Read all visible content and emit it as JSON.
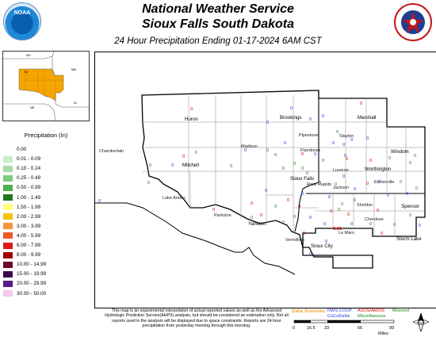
{
  "header": {
    "title_line1": "National Weather Service",
    "title_line2": "Sioux Falls South Dakota",
    "subtitle": "24 Hour Precipitation Ending 01-17-2024 6AM CST",
    "left_logo_text": "NOAA"
  },
  "inset": {
    "states": [
      "ND",
      "MN",
      "SD",
      "IA",
      "NE"
    ],
    "highlight_color": "#f6a500"
  },
  "legend": {
    "title": "Precipitation (In)",
    "items": [
      {
        "label": "0.00",
        "color": "#ffffff"
      },
      {
        "label": "0.01 - 0.09",
        "color": "#c8ecc8"
      },
      {
        "label": "0.10 - 0.24",
        "color": "#a6dca6"
      },
      {
        "label": "0.25 - 0.49",
        "color": "#7fcc7f"
      },
      {
        "label": "0.50 - 0.99",
        "color": "#4fb04f"
      },
      {
        "label": "1.00 - 1.49",
        "color": "#1e7a1e"
      },
      {
        "label": "1.50 - 1.99",
        "color": "#ffff80"
      },
      {
        "label": "2.00 - 2.99",
        "color": "#f6c300"
      },
      {
        "label": "3.00 - 3.99",
        "color": "#f5923a"
      },
      {
        "label": "4.00 - 5.99",
        "color": "#f05a28"
      },
      {
        "label": "6.00 - 7.99",
        "color": "#e01818"
      },
      {
        "label": "8.00 - 9.99",
        "color": "#a00000"
      },
      {
        "label": "10.00 - 14.99",
        "color": "#6a0a2a"
      },
      {
        "label": "15.00 - 19.99",
        "color": "#3a0a4a"
      },
      {
        "label": "20.00 - 29.99",
        "color": "#5a1a8a"
      },
      {
        "label": "30.00 - 50.00",
        "color": "#f3c8f0"
      }
    ]
  },
  "cities": [
    {
      "name": "Huron",
      "big": true
    },
    {
      "name": "Brookings",
      "big": true
    },
    {
      "name": "Marshall",
      "big": true
    },
    {
      "name": "Chamberlain",
      "big": false
    },
    {
      "name": "Mitchell",
      "big": true
    },
    {
      "name": "Madison",
      "big": false
    },
    {
      "name": "Pipestone",
      "big": false
    },
    {
      "name": "Slayton",
      "big": false
    },
    {
      "name": "Windom",
      "big": true
    },
    {
      "name": "Sioux Falls",
      "big": true
    },
    {
      "name": "Worthington",
      "big": true
    },
    {
      "name": "Luverne",
      "big": false
    },
    {
      "name": "Rock Rapids",
      "big": false
    },
    {
      "name": "Spencer",
      "big": true
    },
    {
      "name": "Lake Andes",
      "big": false
    },
    {
      "name": "Yankton",
      "big": true
    },
    {
      "name": "Le Mars",
      "big": false
    },
    {
      "name": "Cherokee",
      "big": false
    },
    {
      "name": "Storm Lake",
      "big": true
    },
    {
      "name": "Sioux City",
      "big": true
    },
    {
      "name": "Parkston",
      "big": false
    },
    {
      "name": "Flandreau",
      "big": false
    },
    {
      "name": "Jackson",
      "big": false
    },
    {
      "name": "Estherville",
      "big": false
    },
    {
      "name": "Sheldon",
      "big": false
    },
    {
      "name": "Vermillion",
      "big": false
    }
  ],
  "reports": [
    "0",
    "0",
    "0",
    "0",
    "0",
    "0",
    "0",
    "0",
    "0",
    "0",
    "0",
    "0",
    "0",
    "0",
    "0",
    "0",
    "0",
    "0",
    "0",
    "0",
    "0",
    "0",
    "0",
    "0",
    "0",
    "0",
    "0",
    "0",
    "0",
    "0",
    "0",
    "0",
    "0",
    "0",
    "0",
    "0",
    "0",
    "0",
    "0",
    "0",
    "0",
    "0",
    "0",
    "0",
    "0",
    "0",
    "0",
    "0",
    "0",
    "0",
    "0",
    "0",
    "0",
    "0",
    "0",
    "0",
    "0",
    "0",
    "0",
    "0",
    "0.01",
    "0",
    "0",
    "0",
    "0",
    "0",
    "0",
    "0",
    "0",
    "0",
    "0",
    "0",
    "0",
    "0",
    "0"
  ],
  "colors": {
    "nws_coop": "#2b3bd6",
    "asos_awos": "#e00000",
    "mesonet": "#1a8a1a"
  },
  "footer": {
    "disclaimer": "This map is an experimental interpolation of actual reported values as well as the Advanced Hydrologic Prediction Service(AHPS) analysis, but should be considered an estimation only. Not all reports used in the analysis will be displayed due to space constraints. Reports are 24 hour precipitation from yesterday morning through this morning.",
    "data_sources_label": "Data Sources:",
    "sources": {
      "nws_coop": "NWS COOP",
      "asos_awos": "ASOS/AWOS",
      "mesonet": "Mesonet",
      "cocorahs": "CoCoRaHs",
      "miscellaneous": "Miscellaneous"
    },
    "scale": {
      "ticks": [
        "0",
        "16.5",
        "33",
        "66",
        "99"
      ],
      "unit": "Miles"
    }
  }
}
